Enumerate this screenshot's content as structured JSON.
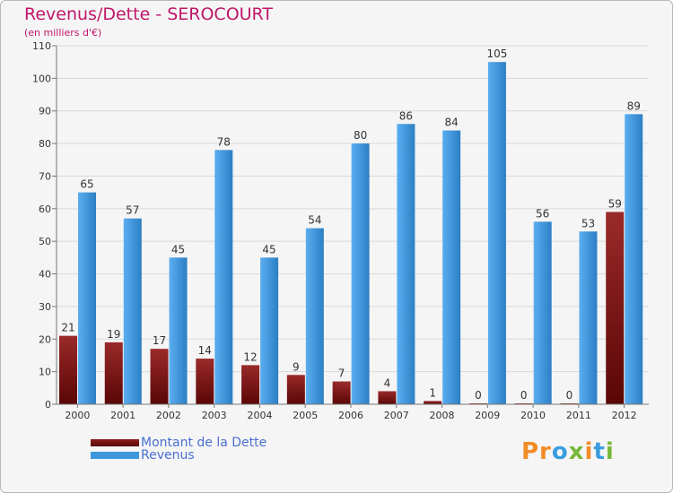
{
  "chart_data": {
    "type": "bar",
    "title": "Revenus/Dette - SEROCOURT",
    "subtitle": "(en milliers d'€)",
    "categories": [
      "2000",
      "2001",
      "2002",
      "2003",
      "2004",
      "2005",
      "2006",
      "2007",
      "2008",
      "2009",
      "2010",
      "2011",
      "2012"
    ],
    "series": [
      {
        "name": "Montant de la Dette",
        "color": "#7a1414",
        "values": [
          21,
          19,
          17,
          14,
          12,
          9,
          7,
          4,
          1,
          0,
          0,
          0,
          59
        ]
      },
      {
        "name": "Revenus",
        "color": "#3d97dc",
        "values": [
          65,
          57,
          45,
          78,
          45,
          54,
          80,
          86,
          84,
          105,
          56,
          53,
          89
        ]
      }
    ],
    "ylim": [
      0,
      110
    ],
    "yticks": [
      0,
      10,
      20,
      30,
      40,
      50,
      60,
      70,
      80,
      90,
      100,
      110
    ],
    "grid": true,
    "legend": "bottom-left"
  },
  "logo": {
    "text": "Proxiti",
    "parts": [
      "Pr",
      "o",
      "x",
      "i",
      "t",
      "i"
    ]
  }
}
